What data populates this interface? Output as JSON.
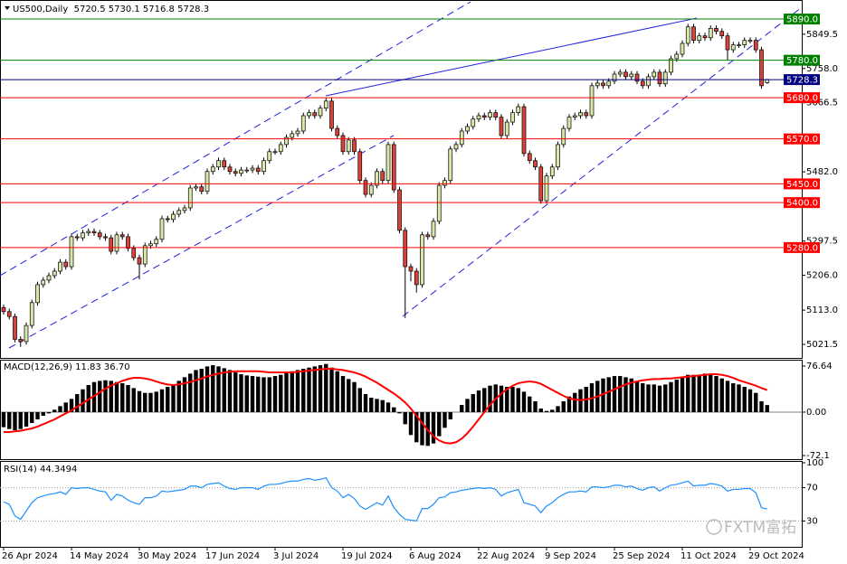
{
  "chart_data": [
    {
      "type": "candlestick",
      "title": "US500,Daily  5720.5 5730.1 5716.8 5728.3",
      "categories": [
        "26 Apr 2024",
        null,
        null,
        null,
        null,
        null,
        null,
        null,
        null,
        null,
        null,
        null,
        "14 May 2024",
        null,
        null,
        null,
        null,
        null,
        null,
        null,
        null,
        null,
        null,
        null,
        "30 May 2024",
        null,
        null,
        null,
        null,
        null,
        null,
        null,
        null,
        null,
        null,
        null,
        "17 Jun 2024",
        null,
        null,
        null,
        null,
        null,
        null,
        null,
        null,
        null,
        null,
        null,
        "3 Jul 2024",
        null,
        null,
        null,
        null,
        null,
        null,
        null,
        null,
        null,
        null,
        null,
        "19 Jul 2024",
        null,
        null,
        null,
        null,
        null,
        null,
        null,
        null,
        null,
        null,
        null,
        "6 Aug 2024",
        null,
        null,
        null,
        null,
        null,
        null,
        null,
        null,
        null,
        null,
        null,
        "22 Aug 2024",
        null,
        null,
        null,
        null,
        null,
        null,
        null,
        null,
        null,
        null,
        null,
        "9 Sep 2024",
        null,
        null,
        null,
        null,
        null,
        null,
        null,
        null,
        null,
        null,
        null,
        "25 Sep 2024",
        null,
        null,
        null,
        null,
        null,
        null,
        null,
        null,
        null,
        null,
        null,
        "11 Oct 2024",
        null,
        null,
        null,
        null,
        null,
        null,
        null,
        null,
        null,
        null,
        null,
        "29 Oct 2024",
        null,
        null,
        null
      ],
      "open": [
        5120,
        5109,
        5096,
        5035,
        5029,
        5072,
        5133,
        5181,
        5193,
        5205,
        5217,
        5241,
        5229,
        5309,
        5306,
        5319,
        5323,
        5319,
        5309,
        5306,
        5270,
        5314,
        5309,
        5278,
        5253,
        5236,
        5285,
        5290,
        5302,
        5357,
        5355,
        5369,
        5379,
        5386,
        5439,
        5442,
        5430,
        5483,
        5495,
        5512,
        5495,
        5483,
        5478,
        5487,
        5487,
        5492,
        5483,
        5512,
        5536,
        5536,
        5555,
        5574,
        5584,
        5591,
        5632,
        5640,
        5632,
        5652,
        5671,
        5598,
        5579,
        5536,
        5567,
        5536,
        5459,
        5422,
        5446,
        5483,
        5459,
        5555,
        5434,
        5326,
        5229,
        5217,
        5181,
        5314,
        5309,
        5350,
        5446,
        5459,
        5543,
        5555,
        5591,
        5603,
        5623,
        5632,
        5628,
        5640,
        5628,
        5579,
        5615,
        5640,
        5656,
        5531,
        5512,
        5495,
        5405,
        5471,
        5495,
        5555,
        5598,
        5628,
        5632,
        5640,
        5632,
        5712,
        5719,
        5712,
        5724,
        5743,
        5748,
        5736,
        5743,
        5724,
        5712,
        5736,
        5748,
        5717,
        5748,
        5784,
        5796,
        5825,
        5869,
        5833,
        5845,
        5840,
        5865,
        5857,
        5845,
        5808,
        5821,
        5821,
        5833,
        5833,
        5808,
        5720.5
      ],
      "high": [
        5128,
        5117,
        5104,
        5043,
        5080,
        5141,
        5189,
        5201,
        5213,
        5225,
        5249,
        5249,
        5317,
        5317,
        5327,
        5331,
        5331,
        5327,
        5317,
        5314,
        5322,
        5322,
        5317,
        5286,
        5261,
        5293,
        5298,
        5310,
        5365,
        5365,
        5377,
        5387,
        5394,
        5447,
        5450,
        5450,
        5491,
        5503,
        5520,
        5520,
        5503,
        5491,
        5495,
        5495,
        5500,
        5500,
        5520,
        5544,
        5544,
        5563,
        5582,
        5592,
        5599,
        5640,
        5648,
        5648,
        5660,
        5679,
        5679,
        5606,
        5587,
        5575,
        5575,
        5544,
        5467,
        5454,
        5491,
        5491,
        5563,
        5563,
        5442,
        5334,
        5237,
        5225,
        5322,
        5322,
        5358,
        5454,
        5467,
        5551,
        5563,
        5599,
        5611,
        5631,
        5640,
        5640,
        5648,
        5648,
        5636,
        5623,
        5648,
        5664,
        5664,
        5539,
        5520,
        5503,
        5479,
        5503,
        5563,
        5606,
        5636,
        5640,
        5648,
        5648,
        5720,
        5727,
        5727,
        5732,
        5751,
        5756,
        5756,
        5751,
        5751,
        5732,
        5744,
        5756,
        5756,
        5756,
        5792,
        5804,
        5833,
        5877,
        5877,
        5853,
        5853,
        5873,
        5873,
        5865,
        5853,
        5829,
        5829,
        5841,
        5841,
        5841,
        5816,
        5730.1
      ],
      "low": [
        5101,
        5088,
        5027,
        5015,
        5021,
        5064,
        5125,
        5173,
        5185,
        5197,
        5209,
        5221,
        5221,
        5298,
        5298,
        5311,
        5311,
        5301,
        5298,
        5262,
        5262,
        5301,
        5270,
        5245,
        5195,
        5228,
        5277,
        5282,
        5294,
        5347,
        5347,
        5361,
        5371,
        5378,
        5431,
        5422,
        5422,
        5475,
        5487,
        5487,
        5475,
        5470,
        5470,
        5479,
        5479,
        5475,
        5475,
        5504,
        5528,
        5528,
        5547,
        5566,
        5576,
        5583,
        5624,
        5624,
        5624,
        5644,
        5590,
        5571,
        5528,
        5528,
        5528,
        5451,
        5414,
        5414,
        5438,
        5451,
        5451,
        5426,
        5318,
        5092,
        5190,
        5160,
        5173,
        5301,
        5301,
        5342,
        5438,
        5451,
        5535,
        5547,
        5583,
        5595,
        5615,
        5620,
        5620,
        5620,
        5571,
        5571,
        5607,
        5632,
        5523,
        5504,
        5487,
        5397,
        5397,
        5463,
        5487,
        5547,
        5590,
        5620,
        5624,
        5624,
        5624,
        5704,
        5704,
        5704,
        5716,
        5735,
        5728,
        5728,
        5716,
        5704,
        5704,
        5728,
        5709,
        5709,
        5740,
        5776,
        5788,
        5817,
        5825,
        5825,
        5832,
        5832,
        5849,
        5837,
        5780,
        5800,
        5813,
        5813,
        5825,
        5800,
        5704,
        5716.8
      ],
      "close": [
        5109,
        5096,
        5035,
        5029,
        5072,
        5133,
        5181,
        5193,
        5205,
        5217,
        5241,
        5229,
        5309,
        5306,
        5319,
        5323,
        5319,
        5309,
        5306,
        5270,
        5314,
        5309,
        5278,
        5253,
        5236,
        5285,
        5290,
        5302,
        5357,
        5355,
        5369,
        5379,
        5386,
        5439,
        5442,
        5430,
        5483,
        5495,
        5512,
        5495,
        5483,
        5478,
        5487,
        5487,
        5492,
        5483,
        5512,
        5536,
        5536,
        5555,
        5574,
        5584,
        5591,
        5632,
        5640,
        5632,
        5652,
        5671,
        5598,
        5579,
        5536,
        5567,
        5536,
        5459,
        5422,
        5446,
        5483,
        5459,
        5555,
        5434,
        5326,
        5229,
        5217,
        5181,
        5314,
        5309,
        5350,
        5446,
        5459,
        5543,
        5555,
        5591,
        5603,
        5623,
        5632,
        5628,
        5640,
        5628,
        5579,
        5615,
        5640,
        5656,
        5531,
        5512,
        5495,
        5405,
        5471,
        5495,
        5555,
        5598,
        5628,
        5632,
        5640,
        5632,
        5712,
        5719,
        5712,
        5724,
        5743,
        5748,
        5736,
        5743,
        5724,
        5712,
        5736,
        5748,
        5717,
        5748,
        5784,
        5796,
        5825,
        5869,
        5833,
        5845,
        5840,
        5865,
        5857,
        5845,
        5808,
        5821,
        5821,
        5833,
        5833,
        5808,
        5712,
        5728.3
      ],
      "up_color": "#d8e8a8",
      "down_color": "#d9443a",
      "ylim": [
        4983,
        5907
      ],
      "yticks": [
        5849.5,
        {
          "value": 5758,
          "label": "5758.0"
        },
        5666.5,
        {
          "value": 5482,
          "label": "5482.0"
        },
        5297.5,
        {
          "value": 5206,
          "label": "5206.0"
        },
        {
          "value": 5113,
          "label": "5113.0"
        },
        5021.5
      ],
      "levels": [
        {
          "value": 5890,
          "label": "5890.0",
          "color": "#008000"
        },
        {
          "value": 5780,
          "label": "5780.0",
          "color": "#008000"
        },
        {
          "value": 5728.3,
          "label": "5728.3",
          "color": "#000080"
        },
        {
          "value": 5680,
          "label": "5680.0",
          "color": "#ff0000"
        },
        {
          "value": 5570,
          "label": "5570.0",
          "color": "#ff0000"
        },
        {
          "value": 5450,
          "label": "5450.0",
          "color": "#ff0000"
        },
        {
          "value": 5400,
          "label": "5400.0",
          "color": "#ff0000"
        },
        {
          "value": 5280,
          "label": "5280.0",
          "color": "#ff0000"
        }
      ]
    },
    {
      "type": "macd",
      "title": "MACD(12,26,9) 11.83 36.70",
      "values": [
        -25,
        -28,
        -30,
        -28,
        -24,
        -18,
        -12,
        -6,
        -2,
        4,
        10,
        16,
        22,
        30,
        38,
        45,
        50,
        52,
        53,
        52,
        50,
        48,
        45,
        40,
        35,
        32,
        32,
        34,
        38,
        42,
        46,
        52,
        58,
        64,
        70,
        72,
        76,
        78,
        76,
        73,
        70,
        66,
        63,
        61,
        60,
        59,
        58,
        58,
        60,
        62,
        65,
        68,
        70,
        72,
        74,
        76,
        78,
        80,
        74,
        68,
        60,
        55,
        50,
        40,
        30,
        24,
        22,
        20,
        16,
        8,
        -2,
        -20,
        -38,
        -50,
        -55,
        -56,
        -52,
        -40,
        -26,
        -12,
        0,
        12,
        22,
        30,
        36,
        40,
        44,
        46,
        44,
        42,
        42,
        40,
        34,
        26,
        18,
        6,
        2,
        4,
        10,
        18,
        26,
        32,
        38,
        42,
        48,
        52,
        56,
        58,
        60,
        60,
        58,
        56,
        52,
        48,
        46,
        46,
        44,
        46,
        50,
        54,
        58,
        62,
        62,
        62,
        64,
        62,
        60,
        56,
        52,
        48,
        46,
        42,
        38,
        32,
        18,
        11.83
      ],
      "signal": [
        -33,
        -33,
        -32,
        -31,
        -29,
        -27,
        -24,
        -20,
        -16,
        -12,
        -7,
        -2,
        3,
        9,
        15,
        21,
        27,
        33,
        39,
        44,
        48,
        52,
        55,
        57,
        57,
        56,
        54,
        51,
        48,
        46,
        45,
        46,
        48,
        50,
        53,
        56,
        59,
        62,
        64,
        66,
        67,
        68,
        68,
        68,
        68,
        68,
        67,
        66,
        66,
        66,
        66,
        66,
        67,
        68,
        69,
        70,
        71,
        72,
        72,
        71,
        70,
        68,
        66,
        63,
        59,
        54,
        49,
        43,
        37,
        31,
        24,
        16,
        6,
        -6,
        -18,
        -30,
        -40,
        -47,
        -51,
        -52,
        -50,
        -44,
        -35,
        -24,
        -12,
        0,
        12,
        22,
        31,
        38,
        44,
        48,
        50,
        51,
        50,
        47,
        42,
        37,
        32,
        27,
        23,
        21,
        20,
        21,
        23,
        26,
        30,
        34,
        38,
        42,
        46,
        49,
        51,
        53,
        54,
        55,
        55,
        56,
        56,
        57,
        58,
        59,
        60,
        61,
        62,
        63,
        63,
        62,
        60,
        57,
        53,
        50,
        47,
        44,
        40,
        36.7
      ],
      "color": "#000000",
      "signal_color": "#ff0000",
      "ylim": [
        -78.1,
        84.1
      ],
      "yticks": [
        76.64,
        {
          "value": 0,
          "label": "0.00"
        },
        -72.1
      ]
    },
    {
      "type": "line",
      "title": "RSI(14) 44.3494",
      "values": [
        53,
        50,
        36,
        32,
        42,
        52,
        58,
        60,
        62,
        63,
        65,
        62,
        70,
        69,
        70,
        70,
        68,
        66,
        65,
        55,
        62,
        60,
        55,
        52,
        50,
        58,
        58,
        60,
        66,
        65,
        66,
        67,
        68,
        72,
        72,
        70,
        74,
        75,
        76,
        72,
        69,
        68,
        70,
        70,
        70,
        68,
        72,
        74,
        74,
        75,
        77,
        78,
        78,
        80,
        81,
        79,
        80,
        82,
        70,
        66,
        58,
        62,
        57,
        48,
        44,
        48,
        52,
        49,
        60,
        46,
        38,
        32,
        31,
        30,
        45,
        45,
        50,
        58,
        59,
        64,
        65,
        67,
        68,
        69,
        70,
        69,
        70,
        68,
        60,
        64,
        66,
        68,
        52,
        50,
        48,
        40,
        48,
        52,
        58,
        62,
        65,
        65,
        66,
        65,
        71,
        71,
        70,
        71,
        73,
        73,
        71,
        72,
        69,
        67,
        70,
        71,
        66,
        70,
        73,
        74,
        76,
        78,
        72,
        73,
        73,
        75,
        74,
        72,
        66,
        68,
        68,
        69,
        69,
        64,
        46,
        44.3494
      ],
      "color": "#1e90ff",
      "ylim": [
        0,
        100
      ],
      "yticks": [
        100,
        70,
        30
      ],
      "levels": [
        70,
        30
      ]
    }
  ],
  "watermark": "FXTM富拓"
}
